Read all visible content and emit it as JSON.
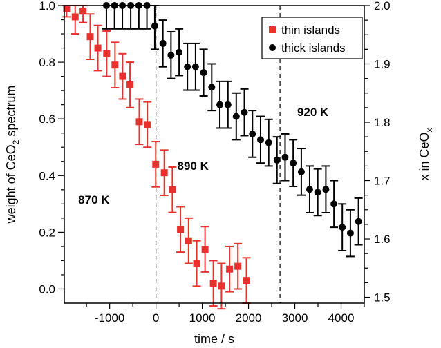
{
  "chart_data": {
    "type": "scatter",
    "xlabel": "time / s",
    "ylabel": {
      "pre": "weight of CeO",
      "sub": "2",
      "post": " spectrum"
    },
    "y2label": {
      "pre": "x in CeO",
      "sub": "x",
      "post": ""
    },
    "xlim": [
      -1980,
      4500
    ],
    "ylim": [
      -0.05,
      1.0
    ],
    "y2lim": [
      1.49,
      2.0
    ],
    "xticks": [
      -1000,
      0,
      1000,
      2000,
      3000,
      4000
    ],
    "yticks": [
      "0.0",
      "0.2",
      "0.4",
      "0.6",
      "0.8",
      "1.0"
    ],
    "y2ticks": [
      "1.5",
      "1.6",
      "1.7",
      "1.8",
      "1.9",
      "2.0"
    ],
    "vlines": [
      0,
      2680
    ],
    "annotations": [
      {
        "text": "870 K",
        "x": -1340,
        "y": 0.315
      },
      {
        "text": "890 K",
        "x": 800,
        "y": 0.435
      },
      {
        "text": "920 K",
        "x": 3390,
        "y": 0.625
      }
    ],
    "legend_position": "top-right",
    "series": [
      {
        "name": "thin islands",
        "axis": "left",
        "color": "#e8312f",
        "marker": "square",
        "points": [
          {
            "x": -1930,
            "y": 0.99,
            "err": 0.03
          },
          {
            "x": -1745,
            "y": 0.96,
            "err": 0.06
          },
          {
            "x": -1575,
            "y": 0.98,
            "err": 0.04
          },
          {
            "x": -1420,
            "y": 0.89,
            "err": 0.08
          },
          {
            "x": -1255,
            "y": 0.85,
            "err": 0.08
          },
          {
            "x": -1065,
            "y": 0.83,
            "err": 0.08
          },
          {
            "x": -885,
            "y": 0.79,
            "err": 0.08
          },
          {
            "x": -720,
            "y": 0.75,
            "err": 0.08
          },
          {
            "x": -560,
            "y": 0.72,
            "err": 0.08
          },
          {
            "x": -360,
            "y": 0.59,
            "err": 0.08
          },
          {
            "x": -185,
            "y": 0.58,
            "err": 0.08
          },
          {
            "x": -5,
            "y": 0.44,
            "err": 0.08
          },
          {
            "x": 180,
            "y": 0.41,
            "err": 0.08
          },
          {
            "x": 355,
            "y": 0.35,
            "err": 0.08
          },
          {
            "x": 530,
            "y": 0.21,
            "err": 0.08
          },
          {
            "x": 705,
            "y": 0.17,
            "err": 0.08
          },
          {
            "x": 880,
            "y": 0.09,
            "err": 0.08
          },
          {
            "x": 1060,
            "y": 0.14,
            "err": 0.08
          },
          {
            "x": 1240,
            "y": 0.02,
            "err": 0.08
          },
          {
            "x": 1415,
            "y": 0.01,
            "err": 0.08
          },
          {
            "x": 1590,
            "y": 0.07,
            "err": 0.08
          },
          {
            "x": 1770,
            "y": 0.08,
            "err": 0.08
          },
          {
            "x": 1955,
            "y": 0.03,
            "err": 0.08
          }
        ]
      },
      {
        "name": "thick islands",
        "axis": "right",
        "color": "#000000",
        "marker": "circle",
        "points": [
          {
            "x": -1070,
            "y": 2.0,
            "err": 0.04
          },
          {
            "x": -895,
            "y": 2.0,
            "err": 0.04
          },
          {
            "x": -725,
            "y": 2.0,
            "err": 0.04
          },
          {
            "x": -545,
            "y": 2.0,
            "err": 0.04
          },
          {
            "x": -370,
            "y": 2.0,
            "err": 0.04
          },
          {
            "x": -195,
            "y": 2.0,
            "err": 0.04
          },
          {
            "x": -25,
            "y": 1.965,
            "err": 0.04
          },
          {
            "x": 150,
            "y": 1.935,
            "err": 0.04
          },
          {
            "x": 325,
            "y": 1.915,
            "err": 0.04
          },
          {
            "x": 500,
            "y": 1.92,
            "err": 0.04
          },
          {
            "x": 680,
            "y": 1.895,
            "err": 0.04
          },
          {
            "x": 855,
            "y": 1.895,
            "err": 0.04
          },
          {
            "x": 1030,
            "y": 1.885,
            "err": 0.04
          },
          {
            "x": 1205,
            "y": 1.86,
            "err": 0.04
          },
          {
            "x": 1380,
            "y": 1.83,
            "err": 0.04
          },
          {
            "x": 1555,
            "y": 1.83,
            "err": 0.04
          },
          {
            "x": 1735,
            "y": 1.81,
            "err": 0.04
          },
          {
            "x": 1910,
            "y": 1.817,
            "err": 0.04
          },
          {
            "x": 2085,
            "y": 1.78,
            "err": 0.04
          },
          {
            "x": 2260,
            "y": 1.77,
            "err": 0.04
          },
          {
            "x": 2435,
            "y": 1.765,
            "err": 0.04
          },
          {
            "x": 2615,
            "y": 1.735,
            "err": 0.04
          },
          {
            "x": 2790,
            "y": 1.74,
            "err": 0.04
          },
          {
            "x": 2965,
            "y": 1.73,
            "err": 0.04
          },
          {
            "x": 3140,
            "y": 1.715,
            "err": 0.04
          },
          {
            "x": 3320,
            "y": 1.685,
            "err": 0.04
          },
          {
            "x": 3495,
            "y": 1.68,
            "err": 0.04
          },
          {
            "x": 3670,
            "y": 1.685,
            "err": 0.04
          },
          {
            "x": 3845,
            "y": 1.66,
            "err": 0.04
          },
          {
            "x": 4025,
            "y": 1.62,
            "err": 0.04
          },
          {
            "x": 4200,
            "y": 1.61,
            "err": 0.04
          },
          {
            "x": 4375,
            "y": 1.63,
            "err": 0.04
          }
        ]
      }
    ]
  }
}
